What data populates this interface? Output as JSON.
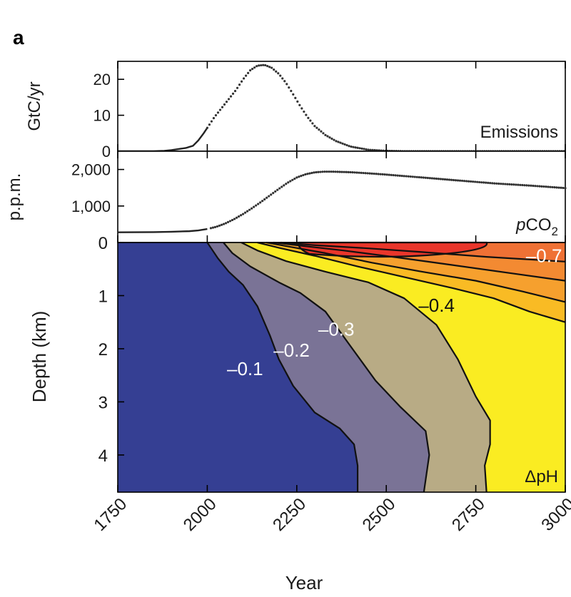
{
  "figure": {
    "panel_label": "a",
    "x_axis_title": "Year",
    "x_ticks": [
      "1750",
      "2000",
      "2250",
      "2500",
      "2750",
      "3000"
    ]
  },
  "chart_data": [
    {
      "type": "line",
      "ylabel": "GtC/yr",
      "annotation": "Emissions",
      "xlim": [
        1750,
        3000
      ],
      "ylim": [
        0,
        25
      ],
      "y_ticks": [
        "0",
        "10",
        "20"
      ],
      "series": [
        {
          "x": [
            1750,
            1850,
            1880,
            1900,
            1920,
            1940,
            1960,
            1975,
            1990,
            2000,
            2010,
            2020,
            2040,
            2060,
            2080,
            2100,
            2120,
            2140,
            2160,
            2180,
            2200,
            2220,
            2240,
            2260,
            2280,
            2300,
            2330,
            2360,
            2400,
            2450,
            2500,
            2550,
            2600,
            2700,
            2800,
            2900,
            3000
          ],
          "y": [
            0,
            0,
            0.1,
            0.3,
            0.6,
            0.9,
            1.5,
            3.0,
            5.0,
            6.5,
            8.0,
            9.5,
            12.0,
            14.5,
            17.0,
            20.0,
            22.5,
            23.8,
            24.0,
            23.2,
            21.5,
            19.0,
            15.8,
            12.5,
            9.5,
            7.0,
            4.5,
            2.8,
            1.3,
            0.4,
            0.1,
            0.0,
            0,
            0,
            0,
            0,
            0
          ]
        }
      ]
    },
    {
      "type": "line",
      "ylabel": "p.p.m.",
      "annotation": "pCO2",
      "xlim": [
        1750,
        3000
      ],
      "ylim": [
        0,
        2500
      ],
      "y_ticks": [
        "1,000",
        "2,000"
      ],
      "series": [
        {
          "x": [
            1750,
            1850,
            1900,
            1950,
            1975,
            2000,
            2025,
            2050,
            2075,
            2100,
            2125,
            2150,
            2175,
            2200,
            2225,
            2250,
            2275,
            2300,
            2325,
            2350,
            2400,
            2450,
            2500,
            2600,
            2700,
            2800,
            2900,
            3000
          ],
          "y": [
            280,
            285,
            295,
            310,
            330,
            370,
            430,
            520,
            640,
            780,
            940,
            1110,
            1290,
            1470,
            1640,
            1780,
            1870,
            1920,
            1940,
            1940,
            1925,
            1895,
            1860,
            1780,
            1700,
            1620,
            1560,
            1490
          ]
        }
      ]
    },
    {
      "type": "heatmap",
      "ylabel": "Depth (km)",
      "annotation": "ΔpH",
      "xlim": [
        1750,
        3000
      ],
      "ylim": [
        0,
        4.7
      ],
      "y_ticks": [
        "0",
        "1",
        "2",
        "3",
        "4"
      ],
      "levels": [
        {
          "color": "#7a7396",
          "label": "–0.1",
          "label_x": 2055,
          "label_y": 2.5,
          "boundary": [
            [
              2000,
              0
            ],
            [
              2010,
              0.1
            ],
            [
              2030,
              0.3
            ],
            [
              2060,
              0.55
            ],
            [
              2100,
              0.8
            ],
            [
              2140,
              1.2
            ],
            [
              2175,
              1.75
            ],
            [
              2200,
              2.2
            ],
            [
              2240,
              2.7
            ],
            [
              2300,
              3.2
            ],
            [
              2370,
              3.5
            ],
            [
              2410,
              3.8
            ],
            [
              2420,
              4.2
            ],
            [
              2420,
              4.7
            ]
          ]
        },
        {
          "color": "#b8ab85",
          "label": "–0.2",
          "label_x": 2185,
          "label_y": 2.15,
          "boundary": [
            [
              2045,
              0
            ],
            [
              2070,
              0.2
            ],
            [
              2120,
              0.45
            ],
            [
              2200,
              0.75
            ],
            [
              2260,
              0.95
            ],
            [
              2330,
              1.3
            ],
            [
              2400,
              1.95
            ],
            [
              2470,
              2.6
            ],
            [
              2540,
              3.1
            ],
            [
              2610,
              3.55
            ],
            [
              2620,
              4.0
            ],
            [
              2605,
              4.7
            ]
          ]
        },
        {
          "color": "#faec22",
          "label": "–0.3",
          "label_x": 2310,
          "label_y": 1.75,
          "boundary": [
            [
              2095,
              0
            ],
            [
              2140,
              0.15
            ],
            [
              2220,
              0.35
            ],
            [
              2330,
              0.55
            ],
            [
              2450,
              0.75
            ],
            [
              2550,
              1.05
            ],
            [
              2640,
              1.55
            ],
            [
              2700,
              2.2
            ],
            [
              2750,
              2.9
            ],
            [
              2790,
              3.35
            ],
            [
              2790,
              3.8
            ],
            [
              2775,
              4.2
            ],
            [
              2780,
              4.7
            ]
          ]
        },
        {
          "color": "#f9bb24",
          "label": "–0.4",
          "label_x": 2590,
          "label_y": 1.3,
          "boundary": [
            [
              2140,
              0
            ],
            [
              2200,
              0.1
            ],
            [
              2300,
              0.25
            ],
            [
              2420,
              0.45
            ],
            [
              2550,
              0.65
            ],
            [
              2680,
              0.85
            ],
            [
              2800,
              1.05
            ],
            [
              2900,
              1.3
            ],
            [
              3000,
              1.5
            ]
          ]
        },
        {
          "color": "#f6a02e",
          "label": "",
          "boundary": [
            [
              2165,
              0
            ],
            [
              2230,
              0.08
            ],
            [
              2330,
              0.2
            ],
            [
              2460,
              0.38
            ],
            [
              2600,
              0.55
            ],
            [
              2750,
              0.72
            ],
            [
              2880,
              0.92
            ],
            [
              3000,
              1.12
            ]
          ]
        },
        {
          "color": "#f38a32",
          "label": "",
          "boundary": [
            [
              2185,
              0
            ],
            [
              2260,
              0.06
            ],
            [
              2380,
              0.15
            ],
            [
              2530,
              0.28
            ],
            [
              2680,
              0.42
            ],
            [
              2850,
              0.58
            ],
            [
              3000,
              0.72
            ]
          ]
        },
        {
          "color": "#ef7135",
          "label": "–0.7",
          "label_x": 2890,
          "label_y": 0.37,
          "boundary": [
            [
              2205,
              0
            ],
            [
              2300,
              0.05
            ],
            [
              2450,
              0.11
            ],
            [
              2600,
              0.18
            ],
            [
              2780,
              0.27
            ],
            [
              3000,
              0.36
            ]
          ]
        }
      ],
      "core": {
        "color": "#e9362b",
        "x_start": 2255,
        "x_end": 2780,
        "depth": 0.28
      }
    }
  ]
}
